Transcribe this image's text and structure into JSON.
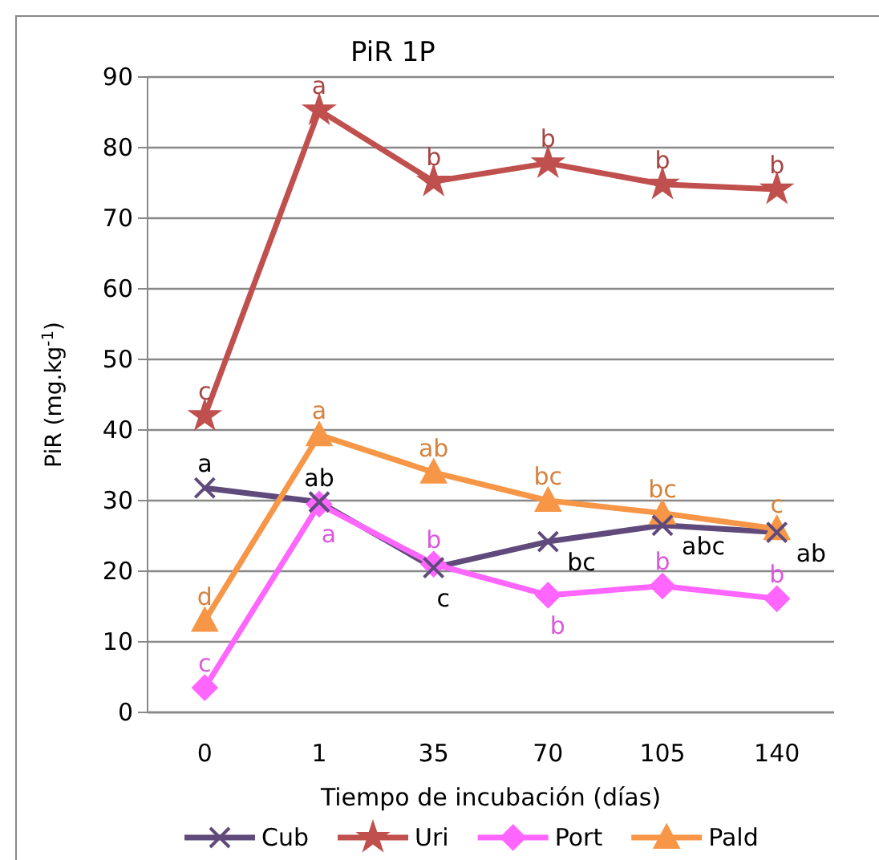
{
  "chart_data": {
    "type": "line",
    "title": "PiR  1P",
    "xlabel": "Tiempo de incubación (días)",
    "ylabel": "PiR  (mg.kg$^{-1}$)",
    "categories": [
      "0",
      "1",
      "35",
      "70",
      "105",
      "140"
    ],
    "series": [
      {
        "name": "Cub",
        "color": "#604a7b",
        "marker": "cross",
        "values": [
          31.8,
          29.8,
          20.5,
          24.2,
          26.5,
          25.5
        ]
      },
      {
        "name": "Uri",
        "color": "#c0504d",
        "marker": "star",
        "values": [
          42,
          85.3,
          75.2,
          77.8,
          74.8,
          74.1
        ]
      },
      {
        "name": "Port",
        "color": "#ff66ff",
        "marker": "diamond",
        "values": [
          3.5,
          29.5,
          21,
          16.6,
          17.9,
          16.1
        ]
      },
      {
        "name": "Pald",
        "color": "#f79646",
        "marker": "triangle",
        "values": [
          13,
          39.3,
          34,
          30,
          28.2,
          26
        ]
      }
    ],
    "ylim": [
      0,
      90
    ],
    "yticks": [
      0,
      10,
      20,
      30,
      40,
      50,
      60,
      70,
      80,
      90
    ],
    "grid": "y",
    "legend": "bottom",
    "annotations": [
      {
        "text": "a",
        "x": "0",
        "y": 31.8
      },
      {
        "text": "ab",
        "x": "1",
        "y": 29.8
      },
      {
        "text": "c",
        "x": "35",
        "y": 20.5
      },
      {
        "text": "bc",
        "x": "70",
        "y": 24.2
      },
      {
        "text": "abc",
        "x": "105",
        "y": 26.5
      },
      {
        "text": "ab",
        "x": "140",
        "y": 25.5
      },
      {
        "text": "c",
        "x": "0",
        "y": 42
      },
      {
        "text": "a",
        "x": "1",
        "y": 85.3
      },
      {
        "text": "b",
        "x": "35",
        "y": 75.2
      },
      {
        "text": "b",
        "x": "70",
        "y": 77.8
      },
      {
        "text": "b",
        "x": "105",
        "y": 74.8
      },
      {
        "text": "b",
        "x": "140",
        "y": 74.1
      },
      {
        "text": "c",
        "x": "0",
        "y": 3.5
      },
      {
        "text": "a",
        "x": "1",
        "y": 29.5
      },
      {
        "text": "b",
        "x": "35",
        "y": 21
      },
      {
        "text": "b",
        "x": "70",
        "y": 16.6
      },
      {
        "text": "b",
        "x": "105",
        "y": 17.9
      },
      {
        "text": "b",
        "x": "140",
        "y": 16.1
      },
      {
        "text": "d",
        "x": "0",
        "y": 13
      },
      {
        "text": "a",
        "x": "1",
        "y": 39.3
      },
      {
        "text": "ab",
        "x": "35",
        "y": 34
      },
      {
        "text": "bc",
        "x": "70",
        "y": 30
      },
      {
        "text": "bc",
        "x": "105",
        "y": 28.2
      },
      {
        "text": "c",
        "x": "140",
        "y": 26
      }
    ]
  }
}
